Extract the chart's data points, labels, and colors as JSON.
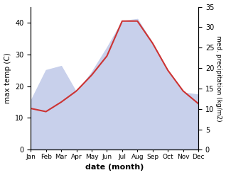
{
  "months": [
    "Jan",
    "Feb",
    "Mar",
    "Apr",
    "May",
    "Jun",
    "Jul",
    "Aug",
    "Sep",
    "Oct",
    "Nov",
    "Dec"
  ],
  "x": [
    1,
    2,
    3,
    4,
    5,
    6,
    7,
    8,
    9,
    10,
    11,
    12
  ],
  "max_temp": [
    13.0,
    12.0,
    15.0,
    18.5,
    23.5,
    29.5,
    40.5,
    40.5,
    33.5,
    25.0,
    18.5,
    14.5
  ],
  "precipitation": [
    12.0,
    19.5,
    20.5,
    14.0,
    19.0,
    25.0,
    31.5,
    32.0,
    26.0,
    19.0,
    14.0,
    13.5
  ],
  "temp_color": "#cc3333",
  "precip_fill_color": "#c8d0eb",
  "ylim_temp": [
    0,
    45
  ],
  "ylim_precip": [
    0,
    35
  ],
  "yticks_temp": [
    0,
    10,
    20,
    30,
    40
  ],
  "yticks_precip": [
    0,
    5,
    10,
    15,
    20,
    25,
    30,
    35
  ],
  "xlabel": "date (month)",
  "ylabel_left": "max temp (C)",
  "ylabel_right": "med. precipitation (kg/m2)",
  "figsize": [
    3.18,
    2.47
  ],
  "dpi": 100
}
